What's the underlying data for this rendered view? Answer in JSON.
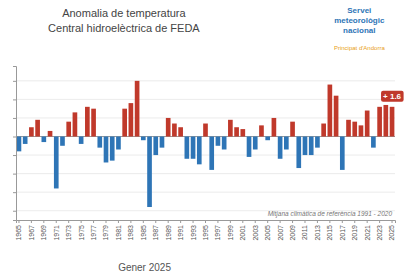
{
  "chart_data": {
    "type": "bar",
    "title": "Anomalia de temperatura",
    "subtitle": "Central hidroelèctrica de FEDA",
    "xlabel": "Gener 2025",
    "categories": [
      "1965",
      null,
      "1967",
      null,
      "1969",
      null,
      "1971",
      null,
      "1973",
      null,
      "1975",
      null,
      "1977",
      null,
      "1979",
      null,
      "1981",
      null,
      "1983",
      null,
      "1985",
      null,
      "1987",
      null,
      "1989",
      null,
      "1991",
      null,
      "1993",
      null,
      "1995",
      null,
      "1997",
      null,
      "1999",
      null,
      "2001",
      null,
      "2003",
      null,
      "2005",
      null,
      "2007",
      null,
      "2009",
      null,
      "2011",
      null,
      "2013",
      null,
      "2015",
      null,
      "2017",
      null,
      "2019",
      null,
      "2021",
      null,
      "2023",
      null,
      "2025"
    ],
    "values": [
      -0.8,
      -0.4,
      0.5,
      0.9,
      -0.3,
      0.3,
      -2.8,
      -0.5,
      0.8,
      1.3,
      -0.4,
      1.6,
      1.5,
      -0.6,
      -1.4,
      -1.3,
      -0.7,
      1.5,
      1.8,
      3.0,
      -0.2,
      -3.8,
      -1.0,
      -0.6,
      1.0,
      0.7,
      0.5,
      -1.2,
      -1.2,
      -1.5,
      0.7,
      -1.8,
      -0.5,
      -0.7,
      0.9,
      0.5,
      0.4,
      -1.1,
      -0.7,
      0.6,
      -0.2,
      1.0,
      -1.2,
      -0.7,
      0.8,
      -1.7,
      -1.0,
      -1.0,
      -0.6,
      0.7,
      2.8,
      2.2,
      -1.8,
      0.9,
      0.8,
      0.6,
      1.4,
      -0.6,
      1.6,
      1.7,
      1.6
    ],
    "colors": [
      "#2e75b6",
      "#2e75b6",
      "#c0392b",
      "#c0392b",
      "#2e75b6",
      "#c0392b",
      "#2e75b6",
      "#2e75b6",
      "#c0392b",
      "#c0392b",
      "#2e75b6",
      "#c0392b",
      "#c0392b",
      "#2e75b6",
      "#2e75b6",
      "#2e75b6",
      "#2e75b6",
      "#c0392b",
      "#c0392b",
      "#c0392b",
      "#2e75b6",
      "#2e75b6",
      "#2e75b6",
      "#2e75b6",
      "#c0392b",
      "#c0392b",
      "#c0392b",
      "#2e75b6",
      "#2e75b6",
      "#2e75b6",
      "#c0392b",
      "#2e75b6",
      "#2e75b6",
      "#2e75b6",
      "#c0392b",
      "#c0392b",
      "#c0392b",
      "#2e75b6",
      "#2e75b6",
      "#c0392b",
      "#2e75b6",
      "#c0392b",
      "#2e75b6",
      "#2e75b6",
      "#c0392b",
      "#2e75b6",
      "#2e75b6",
      "#2e75b6",
      "#2e75b6",
      "#c0392b",
      "#c0392b",
      "#c0392b",
      "#2e75b6",
      "#c0392b",
      "#c0392b",
      "#c0392b",
      "#c0392b",
      "#2e75b6",
      "#c0392b",
      "#c0392b",
      "#c0392b"
    ],
    "ylim": [
      -4.5,
      3.8
    ],
    "yticks": [
      -4,
      -3,
      -2,
      -1,
      0,
      1,
      2,
      3
    ],
    "grid": true,
    "tick_labels": "x",
    "annotations": [
      {
        "text": "Mitjana climàtica de referència 1991 - 2020"
      },
      {
        "text": "+ 1.6",
        "x": "2025",
        "y": 1.6,
        "color": "#c0392b"
      },
      {
        "text": "Servei",
        "color": "#2e75b6"
      },
      {
        "text": "meteorològic",
        "color": "#2e75b6"
      },
      {
        "text": "nacional",
        "color": "#2e75b6"
      },
      {
        "text": "Principat d'Andorra",
        "color": "#e8a020"
      }
    ]
  }
}
